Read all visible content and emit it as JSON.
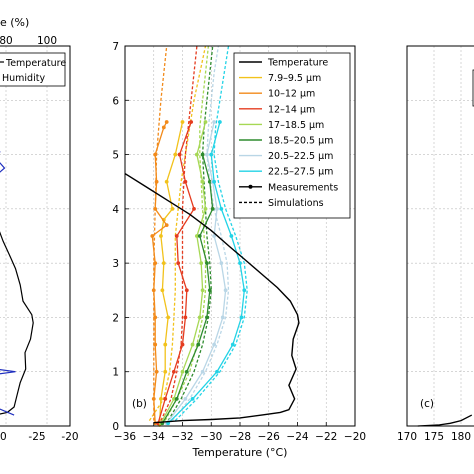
{
  "chart_data": [
    {
      "type": "line",
      "panel": "(a)",
      "top_axis_label_partial": "e (%)",
      "top_ticks": [
        "80",
        "100"
      ],
      "x_ticks": [
        "-25",
        "-20"
      ],
      "x_tick_partial": "0",
      "legend": [
        "Temperature",
        "Humidity"
      ],
      "series": [
        {
          "name": "Temperature",
          "color": "#000000",
          "points": [
            [
              -31,
              3.8
            ],
            [
              -29.8,
              3.4
            ],
            [
              -28.7,
              3.1
            ],
            [
              -28,
              2.9
            ],
            [
              -27.3,
              2.6
            ],
            [
              -26.9,
              2.3
            ],
            [
              -25.6,
              2.05
            ],
            [
              -25.4,
              1.9
            ],
            [
              -25.8,
              1.6
            ],
            [
              -26.6,
              1.35
            ],
            [
              -26.5,
              1.05
            ],
            [
              -27.3,
              0.8
            ],
            [
              -27.8,
              0.55
            ],
            [
              -28.2,
              0.35
            ],
            [
              -29.2,
              0.25
            ],
            [
              -31,
              0.2
            ]
          ]
        },
        {
          "name": "Humidity",
          "color": "#1f2fbf",
          "points": [
            [
              -31,
              5.2
            ],
            [
              -30.3,
              5.05
            ],
            [
              -31,
              4.95
            ],
            [
              -29.6,
              4.75
            ],
            [
              -31,
              4.6
            ],
            [
              -31,
              1.05
            ],
            [
              -28,
              1.0
            ],
            [
              -31,
              0.95
            ],
            [
              -31,
              0.35
            ],
            [
              -28.2,
              0.2
            ]
          ]
        }
      ]
    },
    {
      "type": "line",
      "panel": "(b)",
      "xlabel": "Temperature (°C)",
      "xlim": [
        -36,
        -20
      ],
      "ylim": [
        0,
        7
      ],
      "x_ticks": [
        "−36",
        "−34",
        "−32",
        "−30",
        "−28",
        "−26",
        "−24",
        "−22",
        "−20"
      ],
      "y_ticks": [
        "0",
        "1",
        "2",
        "3",
        "4",
        "5",
        "6",
        "7"
      ],
      "legend": [
        "Temperature",
        "7.9–9.5 µm",
        "10–12 µm",
        "12–14 µm",
        "17–18.5 µm",
        "18.5–20.5 µm",
        "20.5–22.5 µm",
        "22.5–27.5 µm",
        "Measurements",
        "Simulations"
      ],
      "temperature": {
        "name": "Temperature",
        "color": "#000000",
        "points": [
          [
            -36,
            4.65
          ],
          [
            -34.5,
            4.4
          ],
          [
            -33,
            4.15
          ],
          [
            -31.5,
            3.9
          ],
          [
            -30,
            3.6
          ],
          [
            -28.7,
            3.3
          ],
          [
            -27.6,
            3.05
          ],
          [
            -26.5,
            2.8
          ],
          [
            -25.4,
            2.55
          ],
          [
            -24.5,
            2.3
          ],
          [
            -24,
            2.05
          ],
          [
            -23.9,
            1.9
          ],
          [
            -24.3,
            1.6
          ],
          [
            -24.4,
            1.3
          ],
          [
            -24.1,
            1.05
          ],
          [
            -24.6,
            0.75
          ],
          [
            -24.2,
            0.5
          ],
          [
            -24.6,
            0.3
          ],
          [
            -25.2,
            0.25
          ],
          [
            -26.5,
            0.2
          ],
          [
            -28,
            0.15
          ],
          [
            -30,
            0.12
          ],
          [
            -32,
            0.1
          ],
          [
            -34,
            0.06
          ]
        ]
      },
      "channels": [
        {
          "name": "7.9–9.5 µm",
          "color": "#f2c21b",
          "measured": [
            [
              -33.6,
              0.02
            ],
            [
              -33.5,
              0.5
            ],
            [
              -33.2,
              1.0
            ],
            [
              -33.2,
              1.5
            ],
            [
              -33.0,
              2.0
            ],
            [
              -33.4,
              2.5
            ],
            [
              -33.3,
              3.0
            ],
            [
              -33.5,
              3.5
            ],
            [
              -33.3,
              3.8
            ],
            [
              -32.7,
              4.0
            ],
            [
              -33.1,
              4.5
            ],
            [
              -32.5,
              5.0
            ],
            [
              -32.0,
              5.6
            ]
          ],
          "simulated": [
            [
              -34.3,
              0.1
            ],
            [
              -33.3,
              0.5
            ],
            [
              -32.9,
              1.0
            ],
            [
              -32.7,
              1.5
            ],
            [
              -32.6,
              2.0
            ],
            [
              -32.5,
              2.5
            ],
            [
              -32.5,
              3.0
            ],
            [
              -32.5,
              3.5
            ],
            [
              -32.3,
              4.0
            ],
            [
              -32.1,
              4.5
            ],
            [
              -31.8,
              5.0
            ],
            [
              -31.5,
              5.5
            ],
            [
              -31.2,
              6.0
            ],
            [
              -30.8,
              6.5
            ],
            [
              -30.4,
              7.0
            ]
          ]
        },
        {
          "name": "10–12 µm",
          "color": "#f28a1a",
          "measured": [
            [
              -33.9,
              0.05
            ],
            [
              -34.0,
              0.5
            ],
            [
              -33.8,
              1.0
            ],
            [
              -33.9,
              1.5
            ],
            [
              -33.9,
              2.0
            ],
            [
              -34.0,
              2.5
            ],
            [
              -33.9,
              3.0
            ],
            [
              -34.1,
              3.5
            ],
            [
              -33.1,
              3.7
            ],
            [
              -33.9,
              4.0
            ],
            [
              -33.8,
              4.5
            ],
            [
              -33.9,
              5.0
            ],
            [
              -33.3,
              5.5
            ],
            [
              -33.1,
              5.6
            ]
          ],
          "simulated": [
            [
              -34.0,
              0.1
            ],
            [
              -34.0,
              1.0
            ],
            [
              -34.0,
              2.0
            ],
            [
              -34.0,
              3.0
            ],
            [
              -33.9,
              4.0
            ],
            [
              -33.8,
              5.0
            ],
            [
              -33.5,
              6.0
            ],
            [
              -33.1,
              7.0
            ]
          ]
        },
        {
          "name": "12–14 µm",
          "color": "#e53b1f",
          "measured": [
            [
              -33.7,
              0.05
            ],
            [
              -33.2,
              0.5
            ],
            [
              -32.6,
              1.0
            ],
            [
              -32.0,
              1.5
            ],
            [
              -31.8,
              2.0
            ],
            [
              -31.7,
              2.5
            ],
            [
              -32.3,
              3.0
            ],
            [
              -32.4,
              3.5
            ],
            [
              -31.2,
              4.0
            ],
            [
              -31.8,
              4.5
            ],
            [
              -32.2,
              5.0
            ],
            [
              -31.4,
              5.6
            ]
          ],
          "simulated": [
            [
              -33.5,
              0.1
            ],
            [
              -32.8,
              0.5
            ],
            [
              -32.4,
              1.0
            ],
            [
              -32.1,
              1.5
            ],
            [
              -32.0,
              2.0
            ],
            [
              -32.0,
              2.5
            ],
            [
              -32.0,
              3.0
            ],
            [
              -32.0,
              3.5
            ],
            [
              -32.0,
              4.0
            ],
            [
              -31.9,
              4.5
            ],
            [
              -31.8,
              5.0
            ],
            [
              -31.6,
              5.5
            ],
            [
              -31.4,
              6.0
            ],
            [
              -31.2,
              6.5
            ],
            [
              -31.0,
              7.0
            ]
          ]
        },
        {
          "name": "17–18.5 µm",
          "color": "#a6d854",
          "measured": [
            [
              -33.5,
              0.05
            ],
            [
              -32.6,
              0.5
            ],
            [
              -32.0,
              1.0
            ],
            [
              -31.3,
              1.5
            ],
            [
              -30.8,
              2.0
            ],
            [
              -30.6,
              2.5
            ],
            [
              -30.7,
              3.0
            ],
            [
              -31.0,
              3.5
            ],
            [
              -30.4,
              4.0
            ],
            [
              -30.6,
              4.5
            ],
            [
              -31.0,
              5.0
            ],
            [
              -30.4,
              5.6
            ]
          ],
          "simulated": [
            [
              -33.2,
              0.1
            ],
            [
              -32.4,
              0.5
            ],
            [
              -31.5,
              1.0
            ],
            [
              -31.0,
              1.5
            ],
            [
              -30.6,
              2.0
            ],
            [
              -30.4,
              2.5
            ],
            [
              -30.4,
              3.0
            ],
            [
              -30.5,
              3.5
            ],
            [
              -30.6,
              4.0
            ],
            [
              -30.7,
              4.5
            ],
            [
              -30.8,
              5.0
            ],
            [
              -30.8,
              5.5
            ],
            [
              -30.6,
              6.0
            ],
            [
              -30.4,
              6.5
            ],
            [
              -30.2,
              7.0
            ]
          ]
        },
        {
          "name": "18.5–20.5 µm",
          "color": "#2e8b2e",
          "measured": [
            [
              -33.4,
              0.05
            ],
            [
              -32.4,
              0.5
            ],
            [
              -31.7,
              1.0
            ],
            [
              -30.9,
              1.5
            ],
            [
              -30.3,
              2.0
            ],
            [
              -30.1,
              2.5
            ],
            [
              -30.3,
              3.0
            ],
            [
              -30.8,
              3.5
            ],
            [
              -29.9,
              4.0
            ],
            [
              -30.1,
              4.5
            ],
            [
              -30.6,
              5.0
            ]
          ],
          "simulated": [
            [
              -33.0,
              0.1
            ],
            [
              -32.1,
              0.5
            ],
            [
              -31.2,
              1.0
            ],
            [
              -30.6,
              1.5
            ],
            [
              -30.2,
              2.0
            ],
            [
              -30.0,
              2.5
            ],
            [
              -30.1,
              3.0
            ],
            [
              -30.3,
              3.5
            ],
            [
              -30.4,
              4.0
            ],
            [
              -30.5,
              4.5
            ],
            [
              -30.6,
              5.0
            ],
            [
              -30.5,
              5.5
            ],
            [
              -30.3,
              6.0
            ],
            [
              -30.1,
              6.5
            ],
            [
              -29.9,
              7.0
            ]
          ]
        },
        {
          "name": "20.5–22.5 µm",
          "color": "#b9d6e6",
          "measured": [
            [
              -33.1,
              0.05
            ],
            [
              -31.8,
              0.5
            ],
            [
              -30.6,
              1.0
            ],
            [
              -29.8,
              1.5
            ],
            [
              -29.2,
              2.0
            ],
            [
              -29.0,
              2.5
            ],
            [
              -29.3,
              3.0
            ],
            [
              -29.8,
              3.5
            ],
            [
              -29.6,
              4.0
            ],
            [
              -29.9,
              4.5
            ],
            [
              -30.3,
              5.0
            ],
            [
              -29.8,
              5.6
            ]
          ],
          "simulated": [
            [
              -32.7,
              0.1
            ],
            [
              -31.5,
              0.5
            ],
            [
              -30.4,
              1.0
            ],
            [
              -29.6,
              1.5
            ],
            [
              -29.0,
              2.0
            ],
            [
              -28.8,
              2.5
            ],
            [
              -28.9,
              3.0
            ],
            [
              -29.3,
              3.5
            ],
            [
              -29.8,
              4.0
            ],
            [
              -30.1,
              4.5
            ],
            [
              -30.3,
              5.0
            ],
            [
              -30.2,
              5.5
            ],
            [
              -30.0,
              6.0
            ],
            [
              -29.8,
              6.5
            ],
            [
              -29.5,
              7.0
            ]
          ]
        },
        {
          "name": "22.5–27.5 µm",
          "color": "#22d3e6",
          "measured": [
            [
              -33.0,
              0.05
            ],
            [
              -31.3,
              0.5
            ],
            [
              -29.6,
              1.0
            ],
            [
              -28.5,
              1.5
            ],
            [
              -27.9,
              2.0
            ],
            [
              -27.7,
              2.5
            ],
            [
              -28.0,
              3.0
            ],
            [
              -28.6,
              3.5
            ],
            [
              -29.3,
              4.0
            ],
            [
              -29.8,
              4.5
            ],
            [
              -30.0,
              5.0
            ],
            [
              -29.4,
              5.6
            ]
          ],
          "simulated": [
            [
              -32.5,
              0.1
            ],
            [
              -31.0,
              0.5
            ],
            [
              -29.4,
              1.0
            ],
            [
              -28.3,
              1.5
            ],
            [
              -27.7,
              2.0
            ],
            [
              -27.5,
              2.5
            ],
            [
              -27.7,
              3.0
            ],
            [
              -28.3,
              3.5
            ],
            [
              -29.0,
              4.0
            ],
            [
              -29.5,
              4.5
            ],
            [
              -29.8,
              5.0
            ],
            [
              -29.7,
              5.5
            ],
            [
              -29.4,
              6.0
            ],
            [
              -29.1,
              6.5
            ],
            [
              -28.8,
              7.0
            ]
          ]
        }
      ]
    },
    {
      "type": "line",
      "panel": "(c)",
      "x_ticks": [
        "170",
        "175",
        "180"
      ],
      "curve": {
        "color": "#000000",
        "points": [
          [
            172,
            0.0
          ],
          [
            176,
            0.02
          ],
          [
            178,
            0.05
          ],
          [
            180,
            0.1
          ],
          [
            182,
            0.2
          ]
        ]
      }
    }
  ]
}
